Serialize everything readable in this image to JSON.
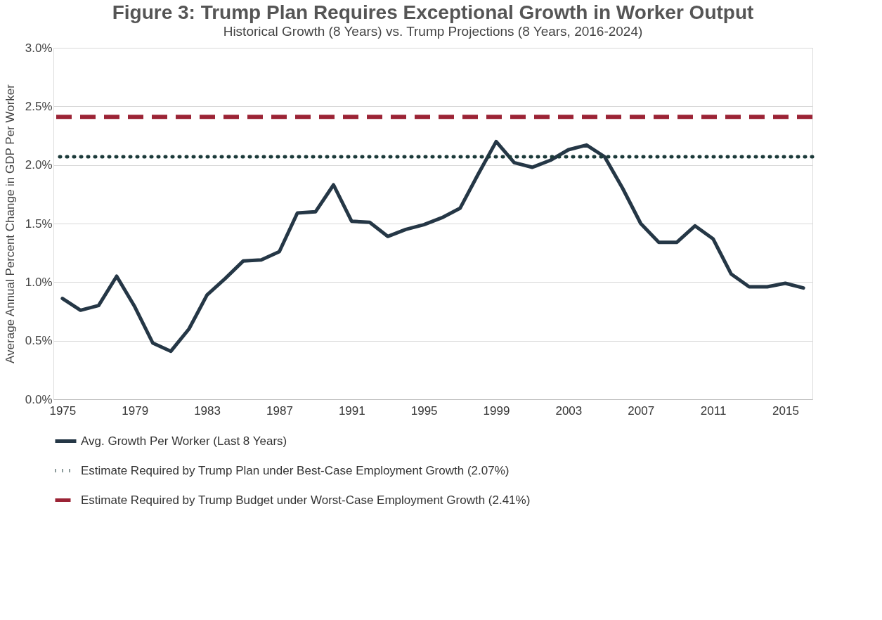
{
  "chart_data": {
    "type": "line",
    "title": "Figure 3: Trump Plan Requires Exceptional Growth in Worker Output",
    "subtitle": "Historical Growth (8 Years) vs. Trump Projections (8 Years, 2016-2024)",
    "ylabel": "Average Annual Percent Change in GDP Per Worker",
    "categories": [
      "1975",
      null,
      null,
      null,
      "1979",
      null,
      null,
      null,
      "1983",
      null,
      null,
      null,
      "1987",
      null,
      null,
      null,
      "1991",
      null,
      null,
      null,
      "1995",
      null,
      null,
      null,
      "1999",
      null,
      null,
      null,
      "2003",
      null,
      null,
      null,
      "2007",
      null,
      null,
      null,
      "2011",
      null,
      null,
      null,
      "2015",
      null
    ],
    "series": [
      {
        "name": "Avg. Growth Per Worker (Last 8 Years)",
        "color": "#253746",
        "values": [
          0.86,
          0.76,
          0.8,
          1.05,
          0.79,
          0.48,
          0.41,
          0.6,
          0.89,
          1.03,
          1.18,
          1.19,
          1.26,
          1.59,
          1.6,
          1.83,
          1.52,
          1.51,
          1.39,
          1.45,
          1.49,
          1.55,
          1.63,
          1.92,
          2.2,
          2.02,
          1.98,
          2.04,
          2.13,
          2.17,
          2.07,
          1.8,
          1.5,
          1.34,
          1.34,
          1.48,
          1.37,
          1.07,
          0.96,
          0.96,
          0.99,
          0.95
        ]
      }
    ],
    "ref_lines": [
      {
        "axis": "y",
        "value": 2.07,
        "label": "Estimate Required by Trump Plan under Best-Case Employment Growth (2.07%)",
        "color": "#1c3a3a",
        "line_style": "dotted"
      },
      {
        "axis": "y",
        "value": 2.41,
        "label": "Estimate Required by Trump Budget under Worst-Case Employment Growth (2.41%)",
        "color": "#9b2335",
        "line_style": "dashed"
      }
    ],
    "ylim": [
      0,
      3
    ],
    "yticks": [
      {
        "value": 0,
        "label": "0.0%"
      },
      {
        "value": 0.5,
        "label": "0.5%"
      },
      {
        "value": 1,
        "label": "1.0%"
      },
      {
        "value": 1.5,
        "label": "1.5%"
      },
      {
        "value": 2,
        "label": "2.0%"
      },
      {
        "value": 2.5,
        "label": "2.5%"
      },
      {
        "value": 3,
        "label": "3.0%"
      }
    ],
    "grid": "y",
    "legend": "bottom",
    "marker": "none",
    "line_style": "solid"
  }
}
